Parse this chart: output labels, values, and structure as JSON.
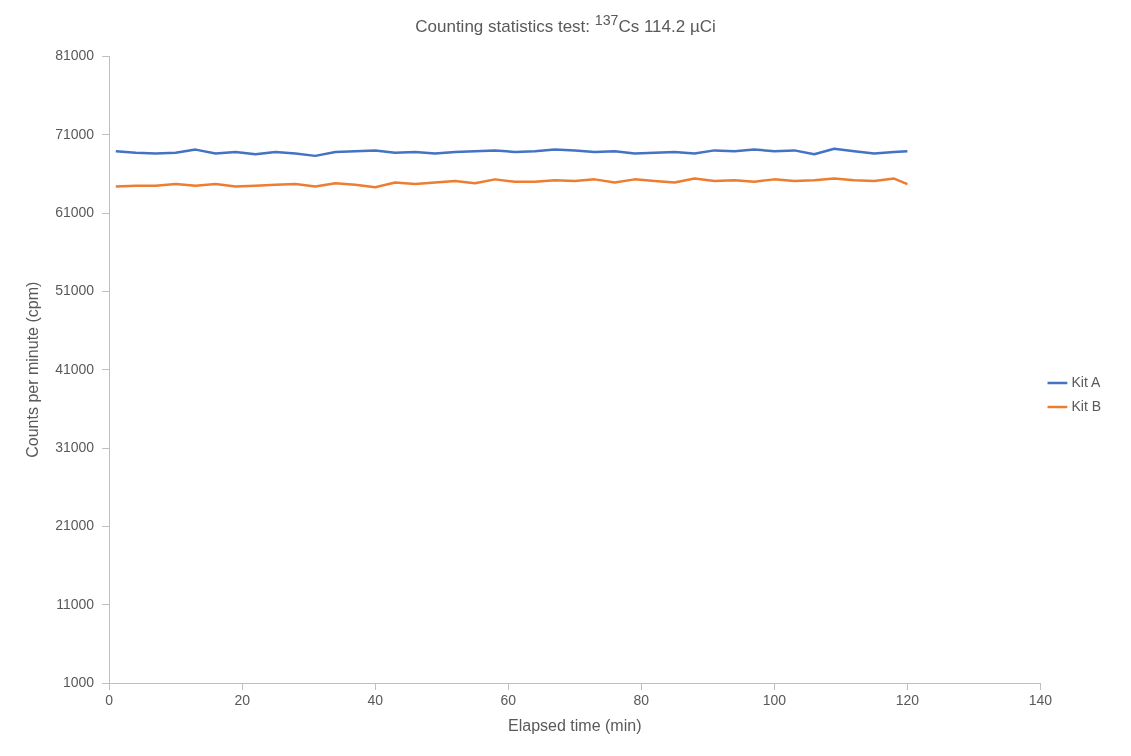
{
  "chart_data": {
    "type": "line",
    "title": "Counting statistics test: $^{137}$Cs 114.2 µCi",
    "xlabel": "Elapsed time (min)",
    "ylabel": "Counts per minute (cpm)",
    "x": [
      1,
      4,
      7,
      10,
      13,
      16,
      19,
      22,
      25,
      28,
      31,
      34,
      37,
      40,
      43,
      46,
      49,
      52,
      55,
      58,
      61,
      64,
      67,
      70,
      73,
      76,
      79,
      82,
      85,
      88,
      91,
      94,
      97,
      100,
      103,
      106,
      109,
      112,
      115,
      118,
      120
    ],
    "series": [
      {
        "name": "Kit A",
        "color": "#4472c4",
        "values": [
          68900,
          68700,
          68600,
          68700,
          69100,
          68600,
          68800,
          68500,
          68800,
          68600,
          68300,
          68800,
          68900,
          69000,
          68700,
          68800,
          68600,
          68800,
          68900,
          69000,
          68800,
          68900,
          69100,
          69000,
          68800,
          68900,
          68600,
          68700,
          68800,
          68600,
          69000,
          68900,
          69100,
          68900,
          69000,
          68500,
          69200,
          68900,
          68600,
          68800,
          68900
        ]
      },
      {
        "name": "Kit B",
        "color": "#ed7d31",
        "values": [
          64400,
          64500,
          64500,
          64700,
          64500,
          64700,
          64400,
          64500,
          64600,
          64700,
          64400,
          64800,
          64600,
          64300,
          64900,
          64700,
          64900,
          65100,
          64800,
          65300,
          65000,
          65000,
          65200,
          65100,
          65300,
          64900,
          65300,
          65100,
          64900,
          65400,
          65100,
          65200,
          65000,
          65300,
          65100,
          65200,
          65400,
          65200,
          65100,
          65400,
          64700
        ]
      }
    ],
    "xlim": [
      0,
      140
    ],
    "xticks": [
      0,
      20,
      40,
      60,
      80,
      100,
      120,
      140
    ],
    "ylim": [
      1000,
      81000
    ],
    "yticks": [
      1000,
      11000,
      21000,
      31000,
      41000,
      51000,
      61000,
      71000,
      81000
    ],
    "grid": false,
    "legend": "right",
    "marker": "none",
    "line_style": "solid"
  }
}
